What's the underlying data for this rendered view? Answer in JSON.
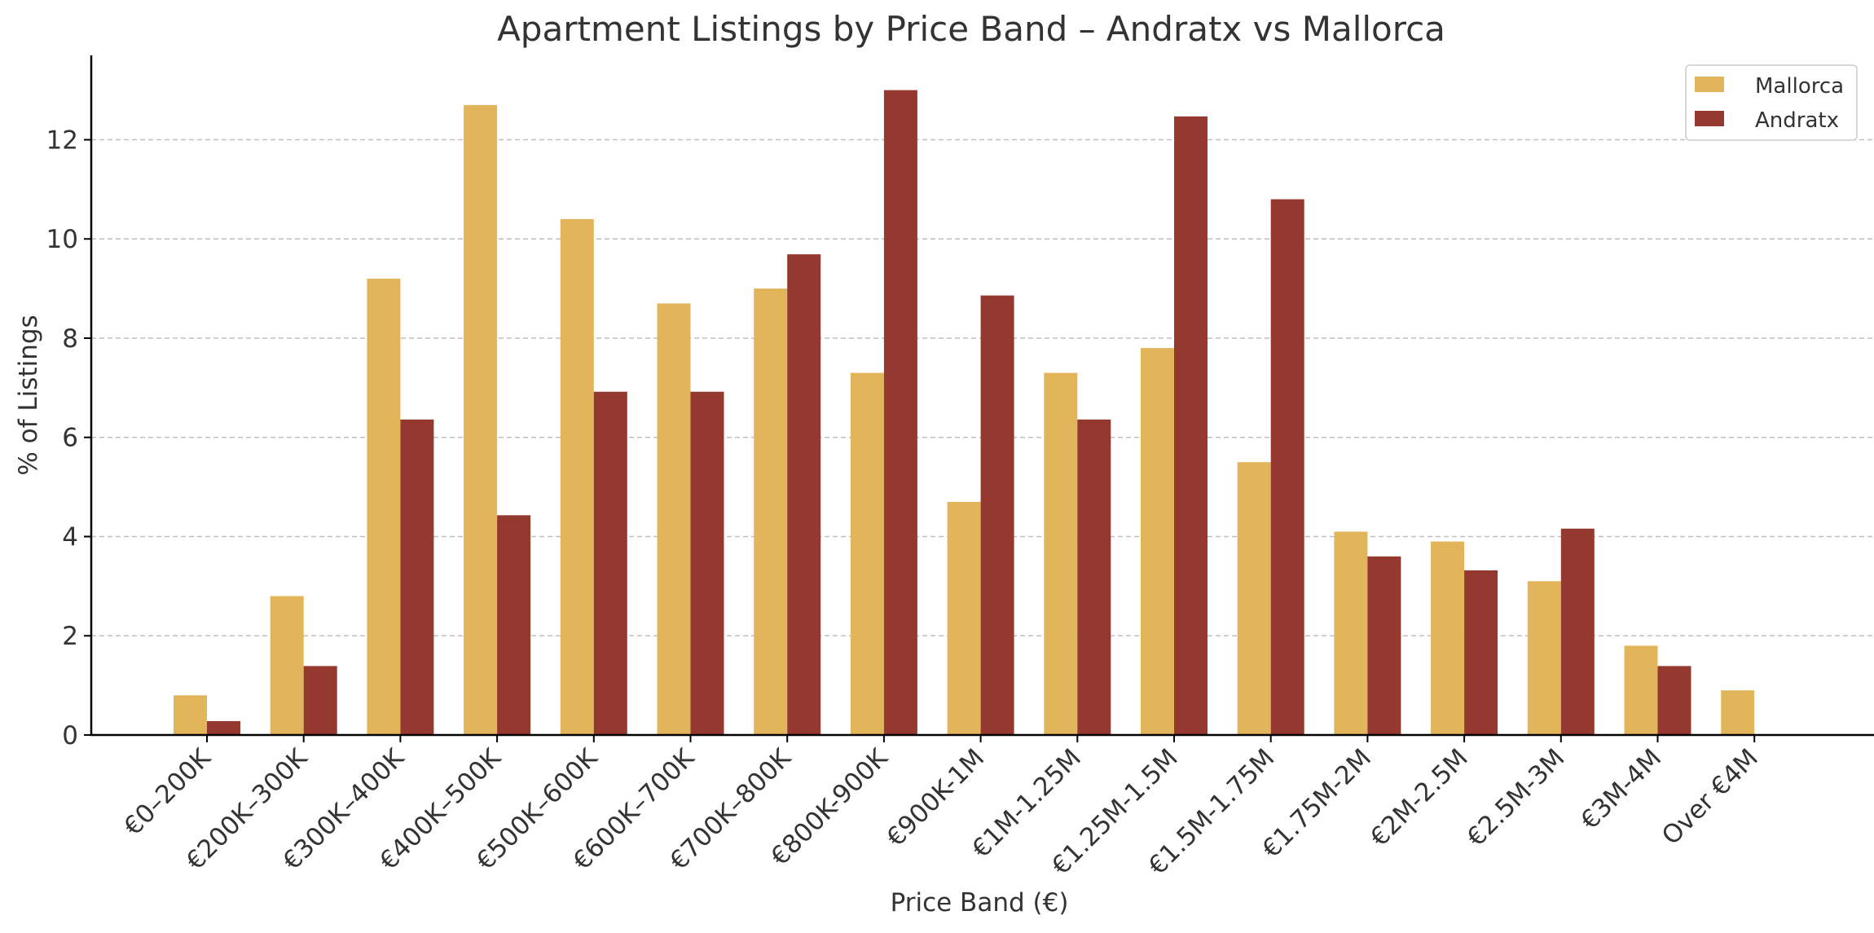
{
  "chart_data": {
    "type": "bar",
    "title": "Apartment Listings by Price Band – Andratx vs Mallorca",
    "xlabel": "Price Band (€)",
    "ylabel": "% of Listings",
    "ylim": [
      0,
      13.7
    ],
    "yticks": [
      0,
      2,
      4,
      6,
      8,
      10,
      12
    ],
    "grid": "horizontal dashed",
    "legend_position": "top-right",
    "categories": [
      "€0–200K",
      "€200K–300K",
      "€300K–400K",
      "€400K–500K",
      "€500K–600K",
      "€600K–700K",
      "€700K–800K",
      "€800K-900K",
      "€900K-1M",
      "€1M-1.25M",
      "€1.25M-1.5M",
      "€1.5M-1.75M",
      "€1.75M-2M",
      "€2M-2.5M",
      "€2.5M-3M",
      "€3M-4M",
      "Over €4M"
    ],
    "series": [
      {
        "name": "Mallorca",
        "color": "#E3B55B",
        "values": [
          0.8,
          2.8,
          9.2,
          12.7,
          10.4,
          8.7,
          9.0,
          7.3,
          4.7,
          7.3,
          7.8,
          5.5,
          4.1,
          3.9,
          3.1,
          1.8,
          0.9
        ]
      },
      {
        "name": "Andratx",
        "color": "#943830",
        "values": [
          0.28,
          1.39,
          6.36,
          4.43,
          6.92,
          6.92,
          9.69,
          13.0,
          8.86,
          6.36,
          12.47,
          10.8,
          3.6,
          3.32,
          4.16,
          1.39,
          0
        ]
      }
    ]
  }
}
